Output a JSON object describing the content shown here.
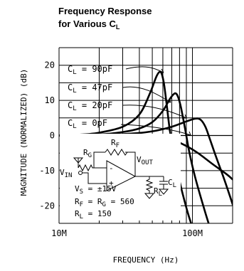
{
  "chart_data": {
    "type": "line",
    "title": "Frequency Response",
    "subtitle_prefix": "for Various C",
    "subtitle_sub": "L",
    "ylabel": "MAGNITUDE (NORMALIZED) (dB)",
    "xlabel": "FREQUENCY (Hz)",
    "xscale": "log",
    "xlim": [
      10000000,
      200000000
    ],
    "ylim": [
      -25,
      25
    ],
    "grid": true,
    "xticks": [
      {
        "value": 10000000,
        "label": "10M"
      },
      {
        "value": 100000000,
        "label": "100M"
      }
    ],
    "yticks": [
      {
        "value": 20,
        "label": "20"
      },
      {
        "value": 10,
        "label": "10"
      },
      {
        "value": 0,
        "label": "0"
      },
      {
        "value": -10,
        "label": "-10"
      },
      {
        "value": -20,
        "label": "-20"
      }
    ],
    "series": [
      {
        "name": "CL = 90pF",
        "label_main": "C",
        "label_sub": "L",
        "label_rest": " = 90pF",
        "x": [
          10000000,
          15000000,
          20000000,
          30000000,
          40000000,
          48000000,
          54000000,
          58000000,
          61000000,
          64000000,
          68000000,
          75000000,
          85000000,
          100000000,
          125000000
        ],
        "y": [
          0,
          0.3,
          0.8,
          2.5,
          6,
          12,
          17,
          18,
          15,
          9,
          1,
          -8,
          -17,
          -26,
          -33
        ]
      },
      {
        "name": "CL = 47pF",
        "label_main": "C",
        "label_sub": "L",
        "label_rest": " = 47pF",
        "x": [
          10000000,
          20000000,
          30000000,
          40000000,
          50000000,
          60000000,
          68000000,
          74000000,
          78000000,
          82000000,
          88000000,
          95000000,
          105000000,
          125000000,
          160000000
        ],
        "y": [
          0,
          0.3,
          1,
          2,
          3.8,
          7,
          10.5,
          12,
          11,
          8,
          2,
          -5,
          -12,
          -22,
          -35
        ]
      },
      {
        "name": "CL = 20pF",
        "label_main": "C",
        "label_sub": "L",
        "label_rest": " = 20pF",
        "x": [
          10000000,
          30000000,
          50000000,
          70000000,
          90000000,
          105000000,
          115000000,
          125000000,
          135000000,
          150000000,
          175000000,
          210000000
        ],
        "y": [
          0,
          0.4,
          1.2,
          2.5,
          4,
          4.8,
          4.5,
          2.5,
          -1,
          -6,
          -13,
          -22
        ]
      },
      {
        "name": "CL = 0pF",
        "label_main": "C",
        "label_sub": "L",
        "label_rest": " = 0pF",
        "x": [
          10000000,
          30000000,
          50000000,
          70000000,
          90000000,
          110000000,
          140000000,
          180000000,
          200000000
        ],
        "y": [
          0,
          0,
          -0.3,
          -1.2,
          -3,
          -5,
          -8,
          -11,
          -12.5
        ]
      }
    ],
    "inset_circuit": {
      "rg_main": "R",
      "rg_sub": "G",
      "rf_main": "R",
      "rf_sub": "F",
      "vout_main": "V",
      "vout_sub": "OUT",
      "vin_main": "V",
      "vin_sub": "IN",
      "rl_main": "R",
      "rl_sub": "L",
      "cl_main": "C",
      "cl_sub": "L",
      "plus_sign": "+",
      "minus_sign": "-",
      "vs_main": "V",
      "vs_sub": "S",
      "vs_rest": " = ±15V",
      "rfrg_1": "R",
      "rfrg_1_sub": "F",
      "rfrg_mid": " = R",
      "rfrg_2_sub": "G",
      "rfrg_rest": " = 560",
      "rl_line_main": "R",
      "rl_line_sub": "L",
      "rl_line_rest": " = 150"
    }
  }
}
